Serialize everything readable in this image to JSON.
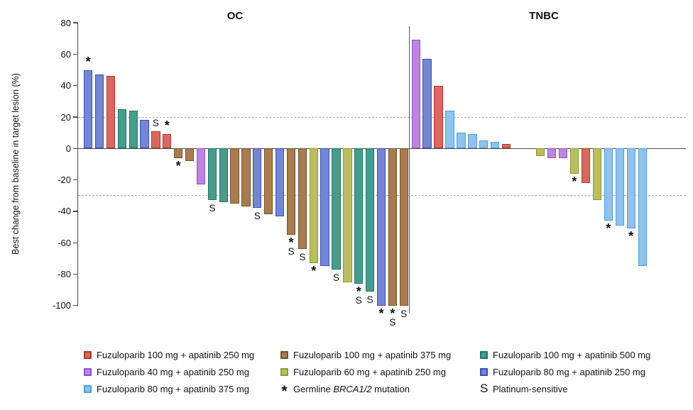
{
  "chart_data": {
    "type": "bar",
    "variant": "waterfall",
    "title": "",
    "xlabel": "",
    "ylabel": "Best change from baseline in target lesion (%)",
    "ylim": [
      -100,
      80
    ],
    "yticks": [
      80,
      60,
      40,
      20,
      0,
      -20,
      -40,
      -60,
      -80,
      -100
    ],
    "reference_lines": [
      20,
      -30
    ],
    "grid": "off",
    "flag_meanings": {
      "*": "Germline BRCA1/2 mutation",
      "S": "Platinum-sensitive"
    },
    "groups": {
      "g100_250": {
        "label": "Fuzuloparib 100 mg + apatinib 250 mg",
        "fill": "#d9685f",
        "stroke": "#ad3a31"
      },
      "g100_375": {
        "label": "Fuzuloparib 100 mg + apatinib 375 mg",
        "fill": "#a87c4f",
        "stroke": "#75512b"
      },
      "g100_500": {
        "label": "Fuzuloparib 100 mg + apatinib 500 mg",
        "fill": "#489c8c",
        "stroke": "#1f7669"
      },
      "g40_250": {
        "label": "Fuzuloparib 40 mg + apatinib 250 mg",
        "fill": "#bb87dc",
        "stroke": "#9551c9"
      },
      "g60_250": {
        "label": "Fuzuloparib 60 mg + apatinib 250 mg",
        "fill": "#b9be5e",
        "stroke": "#8d9b32"
      },
      "g80_250": {
        "label": "Fuzuloparib 80 mg + apatinib 250 mg",
        "fill": "#7486d1",
        "stroke": "#3a50b2"
      },
      "g80_375": {
        "label": "Fuzuloparib 80 mg + apatinib 375 mg",
        "fill": "#90c2ec",
        "stroke": "#4f9edd"
      }
    },
    "panels": [
      {
        "label": "OC",
        "bars": [
          {
            "value": 50,
            "group": "g80_250",
            "flags": "*"
          },
          {
            "value": 47,
            "group": "g80_250",
            "flags": ""
          },
          {
            "value": 46,
            "group": "g100_250",
            "flags": ""
          },
          {
            "value": 25,
            "group": "g100_500",
            "flags": ""
          },
          {
            "value": 24,
            "group": "g100_500",
            "flags": ""
          },
          {
            "value": 18,
            "group": "g80_250",
            "flags": ""
          },
          {
            "value": 11,
            "group": "g100_250",
            "flags": "S"
          },
          {
            "value": 9,
            "group": "g100_250",
            "flags": "*"
          },
          {
            "value": -6,
            "group": "g100_375",
            "flags": "*"
          },
          {
            "value": -8,
            "group": "g100_375",
            "flags": ""
          },
          {
            "value": -23,
            "group": "g40_250",
            "flags": ""
          },
          {
            "value": -33,
            "group": "g100_500",
            "flags": "S"
          },
          {
            "value": -34,
            "group": "g100_500",
            "flags": ""
          },
          {
            "value": -35,
            "group": "g100_375",
            "flags": ""
          },
          {
            "value": -37,
            "group": "g100_375",
            "flags": ""
          },
          {
            "value": -38,
            "group": "g80_250",
            "flags": "S"
          },
          {
            "value": -42,
            "group": "g100_375",
            "flags": ""
          },
          {
            "value": -43,
            "group": "g80_250",
            "flags": ""
          },
          {
            "value": -55,
            "group": "g100_375",
            "flags": "*S"
          },
          {
            "value": -64,
            "group": "g100_375",
            "flags": "S"
          },
          {
            "value": -73,
            "group": "g60_250",
            "flags": "*"
          },
          {
            "value": -75,
            "group": "g80_250",
            "flags": ""
          },
          {
            "value": -77,
            "group": "g100_500",
            "flags": "S"
          },
          {
            "value": -85,
            "group": "g60_250",
            "flags": ""
          },
          {
            "value": -86,
            "group": "g100_500",
            "flags": "*S"
          },
          {
            "value": -91,
            "group": "g100_500",
            "flags": "S"
          },
          {
            "value": -100,
            "group": "g80_250",
            "flags": "*"
          },
          {
            "value": -100,
            "group": "g100_375",
            "flags": "*S"
          },
          {
            "value": -100,
            "group": "g100_375",
            "flags": "S"
          }
        ]
      },
      {
        "label": "TNBC",
        "bars": [
          {
            "value": 69,
            "group": "g40_250",
            "flags": ""
          },
          {
            "value": 57,
            "group": "g80_250",
            "flags": ""
          },
          {
            "value": 40,
            "group": "g100_250",
            "flags": ""
          },
          {
            "value": 24,
            "group": "g80_375",
            "flags": ""
          },
          {
            "value": 10,
            "group": "g80_375",
            "flags": ""
          },
          {
            "value": 9,
            "group": "g80_375",
            "flags": ""
          },
          {
            "value": 5,
            "group": "g80_375",
            "flags": ""
          },
          {
            "value": 4,
            "group": "g80_375",
            "flags": ""
          },
          {
            "value": 3,
            "group": "g100_250",
            "flags": ""
          },
          {
            "value": 0,
            "group": null,
            "flags": ""
          },
          {
            "value": 0,
            "group": null,
            "flags": ""
          },
          {
            "value": -5,
            "group": "g60_250",
            "flags": ""
          },
          {
            "value": -6,
            "group": "g40_250",
            "flags": ""
          },
          {
            "value": -6,
            "group": "g40_250",
            "flags": ""
          },
          {
            "value": -16,
            "group": "g60_250",
            "flags": "*"
          },
          {
            "value": -22,
            "group": "g100_250",
            "flags": ""
          },
          {
            "value": -33,
            "group": "g60_250",
            "flags": ""
          },
          {
            "value": -46,
            "group": "g80_375",
            "flags": "*"
          },
          {
            "value": -49,
            "group": "g80_375",
            "flags": ""
          },
          {
            "value": -51,
            "group": "g80_375",
            "flags": "*"
          },
          {
            "value": -75,
            "group": "g80_375",
            "flags": ""
          }
        ]
      }
    ]
  },
  "legend": {
    "columns": [
      [
        {
          "type": "group",
          "group": "g100_250"
        },
        {
          "type": "group",
          "group": "g40_250"
        },
        {
          "type": "group",
          "group": "g80_375"
        }
      ],
      [
        {
          "type": "group",
          "group": "g100_375"
        },
        {
          "type": "group",
          "group": "g60_250"
        },
        {
          "type": "symbol",
          "symbol": "*",
          "label_parts": [
            "Germline ",
            "BRCA1/2",
            " mutation"
          ],
          "italic_part": 1
        }
      ],
      [
        {
          "type": "group",
          "group": "g100_500"
        },
        {
          "type": "group",
          "group": "g80_250"
        },
        {
          "type": "symbol",
          "symbol": "S",
          "label_parts": [
            "Platinum-sensitive"
          ],
          "italic_part": -1
        }
      ]
    ]
  }
}
